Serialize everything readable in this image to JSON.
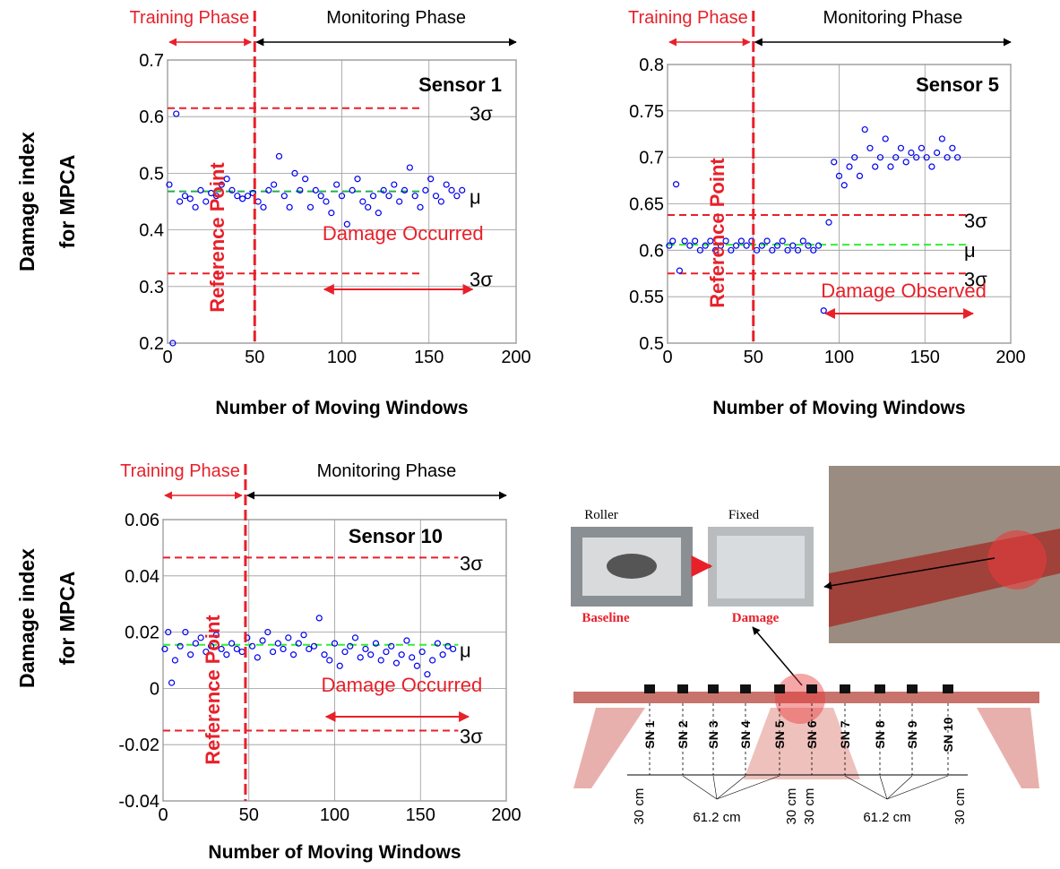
{
  "chart_data": [
    {
      "type": "scatter",
      "title": "Sensor 1",
      "xlabel": "Number of Moving Windows",
      "ylabel": [
        "Damage index",
        "for MPCA"
      ],
      "phase_labels": [
        "Training Phase",
        "Monitoring Phase"
      ],
      "reference_label": "Reference Point",
      "reference_x": 50,
      "damage_label": "Damage Occurred",
      "damage_range": [
        90,
        175
      ],
      "hline_xlim": [
        0,
        145
      ],
      "hlines": [
        {
          "label": "3σ",
          "value": 0.615,
          "color": "#e8202a"
        },
        {
          "label": "μ",
          "value": 0.468,
          "color": "#22b04b"
        },
        {
          "label": "3σ",
          "value": 0.323,
          "color": "#e8202a"
        }
      ],
      "xlim": [
        0,
        200
      ],
      "ylim": [
        0.2,
        0.7
      ],
      "xticks": [
        0,
        50,
        100,
        150,
        200
      ],
      "yticks": [
        0.2,
        0.3,
        0.4,
        0.5,
        0.6,
        0.7
      ],
      "grid": true,
      "color": "#0000ee",
      "x": [
        1,
        3,
        5,
        7,
        10,
        13,
        16,
        19,
        22,
        25,
        28,
        31,
        34,
        37,
        40,
        43,
        46,
        49,
        52,
        55,
        58,
        61,
        64,
        67,
        70,
        73,
        76,
        79,
        82,
        85,
        88,
        91,
        94,
        97,
        100,
        103,
        106,
        109,
        112,
        115,
        118,
        121,
        124,
        127,
        130,
        133,
        136,
        139,
        142,
        145,
        148,
        151,
        154,
        157,
        160,
        163,
        166,
        169
      ],
      "values": [
        0.48,
        0.2,
        0.605,
        0.45,
        0.46,
        0.455,
        0.44,
        0.47,
        0.45,
        0.465,
        0.46,
        0.48,
        0.49,
        0.47,
        0.46,
        0.455,
        0.46,
        0.465,
        0.45,
        0.44,
        0.47,
        0.48,
        0.53,
        0.46,
        0.44,
        0.5,
        0.47,
        0.49,
        0.44,
        0.47,
        0.46,
        0.45,
        0.43,
        0.48,
        0.46,
        0.41,
        0.47,
        0.49,
        0.45,
        0.44,
        0.46,
        0.43,
        0.47,
        0.46,
        0.48,
        0.45,
        0.47,
        0.51,
        0.46,
        0.44,
        0.47,
        0.49,
        0.46,
        0.45,
        0.48,
        0.47,
        0.46,
        0.47
      ]
    },
    {
      "type": "scatter",
      "title": "Sensor 5",
      "xlabel": "Number of Moving Windows",
      "phase_labels": [
        "Training Phase",
        "Monitoring Phase"
      ],
      "reference_label": "Reference Point",
      "reference_x": 50,
      "damage_label": "Damage Observed",
      "damage_range": [
        92,
        178
      ],
      "hline_xlim": [
        0,
        175
      ],
      "hlines": [
        {
          "label": "3σ",
          "value": 0.638,
          "color": "#e8202a"
        },
        {
          "label": "μ",
          "value": 0.606,
          "color": "#33ee33"
        },
        {
          "label": "3σ",
          "value": 0.575,
          "color": "#e8202a"
        }
      ],
      "xlim": [
        0,
        200
      ],
      "ylim": [
        0.5,
        0.8
      ],
      "xticks": [
        0,
        50,
        100,
        150,
        200
      ],
      "yticks": [
        0.5,
        0.55,
        0.6,
        0.65,
        0.7,
        0.75,
        0.8
      ],
      "grid": true,
      "color": "#0000ee",
      "x": [
        1,
        3,
        5,
        7,
        10,
        13,
        16,
        19,
        22,
        25,
        28,
        31,
        34,
        37,
        40,
        43,
        46,
        49,
        52,
        55,
        58,
        61,
        64,
        67,
        70,
        73,
        76,
        79,
        82,
        85,
        88,
        91,
        94,
        97,
        100,
        103,
        106,
        109,
        112,
        115,
        118,
        121,
        124,
        127,
        130,
        133,
        136,
        139,
        142,
        145,
        148,
        151,
        154,
        157,
        160,
        163,
        166,
        169
      ],
      "values": [
        0.605,
        0.61,
        0.671,
        0.578,
        0.61,
        0.605,
        0.61,
        0.6,
        0.605,
        0.61,
        0.6,
        0.605,
        0.61,
        0.6,
        0.605,
        0.61,
        0.605,
        0.61,
        0.6,
        0.605,
        0.61,
        0.6,
        0.605,
        0.61,
        0.6,
        0.605,
        0.6,
        0.61,
        0.605,
        0.6,
        0.605,
        0.535,
        0.63,
        0.695,
        0.68,
        0.67,
        0.69,
        0.7,
        0.68,
        0.73,
        0.71,
        0.69,
        0.7,
        0.72,
        0.69,
        0.7,
        0.71,
        0.695,
        0.705,
        0.7,
        0.71,
        0.7,
        0.69,
        0.705,
        0.72,
        0.7,
        0.71,
        0.7
      ]
    },
    {
      "type": "scatter",
      "title": "Sensor 10",
      "xlabel": "Number of Moving Windows",
      "ylabel": [
        "Damage index",
        "for MPCA"
      ],
      "phase_labels": [
        "Training Phase",
        "Monitoring Phase"
      ],
      "reference_label": "Reference Point",
      "reference_x": 48,
      "damage_label": "Damage Occurred",
      "damage_range": [
        95,
        178
      ],
      "hline_xlim": [
        0,
        172
      ],
      "hlines": [
        {
          "label": "3σ",
          "value": 0.0465,
          "color": "#e8202a"
        },
        {
          "label": "μ",
          "value": 0.0155,
          "color": "#33ee33"
        },
        {
          "label": "3σ",
          "value": -0.015,
          "color": "#e8202a"
        }
      ],
      "xlim": [
        0,
        200
      ],
      "ylim": [
        -0.04,
        0.06
      ],
      "xticks": [
        0,
        50,
        100,
        150,
        200
      ],
      "yticks": [
        -0.04,
        -0.02,
        0,
        0.02,
        0.04,
        0.06
      ],
      "grid": true,
      "color": "#0000ee",
      "x": [
        1,
        3,
        5,
        7,
        10,
        13,
        16,
        19,
        22,
        25,
        28,
        31,
        34,
        37,
        40,
        43,
        46,
        49,
        52,
        55,
        58,
        61,
        64,
        67,
        70,
        73,
        76,
        79,
        82,
        85,
        88,
        91,
        94,
        97,
        100,
        103,
        106,
        109,
        112,
        115,
        118,
        121,
        124,
        127,
        130,
        133,
        136,
        139,
        142,
        145,
        148,
        151,
        154,
        157,
        160,
        163,
        166,
        169
      ],
      "values": [
        0.014,
        0.02,
        0.002,
        0.01,
        0.015,
        0.02,
        0.012,
        0.016,
        0.018,
        0.013,
        0.015,
        0.019,
        0.014,
        0.012,
        0.016,
        0.014,
        0.013,
        0.018,
        0.015,
        0.011,
        0.017,
        0.02,
        0.013,
        0.016,
        0.014,
        0.018,
        0.012,
        0.016,
        0.019,
        0.014,
        0.015,
        0.025,
        0.012,
        0.01,
        0.016,
        0.008,
        0.013,
        0.015,
        0.018,
        0.011,
        0.014,
        0.012,
        0.016,
        0.01,
        0.013,
        0.015,
        0.009,
        0.012,
        0.017,
        0.011,
        0.008,
        0.013,
        0.005,
        0.01,
        0.016,
        0.012,
        0.015,
        0.014
      ]
    }
  ],
  "diagram": {
    "roller": "Roller",
    "fixed": "Fixed",
    "baseline": "Baseline",
    "damage": "Damage",
    "sensors": [
      "SN 1",
      "SN 2",
      "SN 3",
      "SN 4",
      "SN 5",
      "SN 6",
      "SN 7",
      "SN 8",
      "SN 9",
      "SN 10"
    ],
    "spacing": [
      "30 cm",
      "61.2 cm",
      "30 cm",
      "30 cm",
      "61.2 cm",
      "30 cm"
    ]
  }
}
